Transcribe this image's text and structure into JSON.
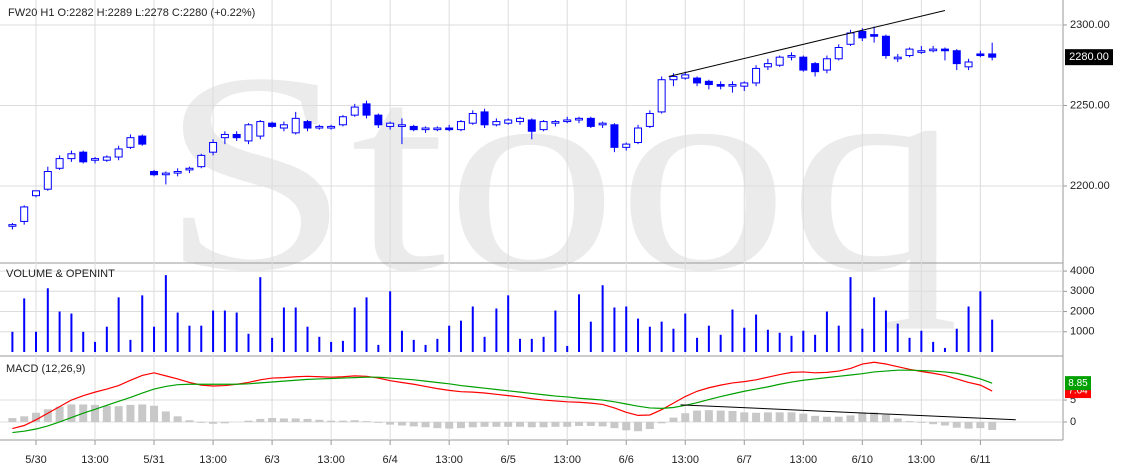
{
  "chart_data": [
    {
      "type": "candlestick",
      "title": "FW20  H1  O:2282 H:2289 L:2278 C:2280 (+0.22%)",
      "watermark": "Stooq",
      "color": "#0000ff",
      "grid": true,
      "xlim": [
        -1.05,
        89
      ],
      "categories": [
        null,
        null,
        "5/30",
        null,
        null,
        null,
        null,
        "13:00",
        null,
        null,
        null,
        null,
        "5/31",
        null,
        null,
        null,
        null,
        "13:00",
        null,
        null,
        null,
        null,
        "6/3",
        null,
        null,
        null,
        null,
        "13:00",
        null,
        null,
        null,
        null,
        "6/4",
        null,
        null,
        null,
        null,
        "13:00",
        null,
        null,
        null,
        null,
        "6/5",
        null,
        null,
        null,
        null,
        "13:00",
        null,
        null,
        null,
        null,
        "6/6",
        null,
        null,
        null,
        null,
        "13:00",
        null,
        null,
        null,
        null,
        "6/7",
        null,
        null,
        null,
        null,
        "13:00",
        null,
        null,
        null,
        null,
        "6/10",
        null,
        null,
        null,
        null,
        "13:00",
        null,
        null,
        null,
        null,
        "6/11",
        null
      ],
      "open": [
        2175,
        2178,
        2194,
        2198,
        2211,
        2217,
        2221,
        2216,
        2216,
        2218,
        2224,
        2231,
        2209,
        2207,
        2208,
        2210,
        2212,
        2221,
        2230,
        2232,
        2228,
        2231,
        2239,
        2236,
        2233,
        2240,
        2236,
        2236,
        2238,
        2244,
        2251,
        2244,
        2237,
        2237,
        2237,
        2235,
        2235,
        2236,
        2235,
        2239,
        2246,
        2238,
        2239,
        2240,
        2241,
        2235,
        2239,
        2240,
        2241,
        2242,
        2238,
        2238,
        2224,
        2227,
        2237,
        2246,
        2266,
        2267,
        2267,
        2265,
        2263,
        2262,
        2262,
        2264,
        2274,
        2275,
        2280,
        2280,
        2276,
        2272,
        2279,
        2288,
        2296,
        2294,
        2293,
        2279,
        2281,
        2283,
        2284,
        2285,
        2284,
        2274,
        2282,
        2282
      ],
      "high": [
        2177,
        2188,
        2197,
        2212,
        2219,
        2222,
        2222,
        2218,
        2219,
        2225,
        2232,
        2232,
        2210,
        2209,
        2211,
        2212,
        2220,
        2229,
        2234,
        2234,
        2239,
        2241,
        2240,
        2240,
        2246,
        2241,
        2238,
        2238,
        2244,
        2251,
        2253,
        2245,
        2240,
        2242,
        2238,
        2237,
        2237,
        2238,
        2241,
        2247,
        2248,
        2242,
        2242,
        2243,
        2242,
        2241,
        2241,
        2243,
        2243,
        2243,
        2240,
        2239,
        2227,
        2238,
        2247,
        2268,
        2270,
        2271,
        2268,
        2266,
        2265,
        2265,
        2265,
        2275,
        2279,
        2281,
        2283,
        2281,
        2277,
        2281,
        2288,
        2297,
        2298,
        2299,
        2294,
        2282,
        2286,
        2287,
        2287,
        2286,
        2285,
        2279,
        2284,
        2289
      ],
      "low": [
        2173,
        2176,
        2193,
        2197,
        2210,
        2215,
        2214,
        2214,
        2215,
        2216,
        2223,
        2225,
        2206,
        2201,
        2206,
        2208,
        2211,
        2219,
        2226,
        2228,
        2226,
        2229,
        2236,
        2234,
        2232,
        2234,
        2235,
        2235,
        2237,
        2243,
        2242,
        2236,
        2235,
        2226,
        2234,
        2233,
        2234,
        2234,
        2234,
        2238,
        2236,
        2237,
        2238,
        2238,
        2229,
        2234,
        2237,
        2239,
        2239,
        2236,
        2236,
        2221,
        2222,
        2226,
        2236,
        2245,
        2262,
        2266,
        2262,
        2260,
        2260,
        2258,
        2259,
        2262,
        2272,
        2274,
        2278,
        2271,
        2268,
        2270,
        2278,
        2287,
        2290,
        2289,
        2279,
        2277,
        2280,
        2282,
        2283,
        2278,
        2272,
        2272,
        2280,
        2278
      ],
      "close": [
        2176,
        2187,
        2197,
        2209,
        2217,
        2220,
        2215,
        2217,
        2218,
        2223,
        2230,
        2226,
        2207,
        2208,
        2209,
        2211,
        2219,
        2227,
        2232,
        2230,
        2238,
        2240,
        2237,
        2238,
        2242,
        2236,
        2237,
        2237,
        2243,
        2249,
        2244,
        2238,
        2239,
        2238,
        2235,
        2236,
        2236,
        2235,
        2240,
        2245,
        2238,
        2240,
        2241,
        2242,
        2234,
        2240,
        2240,
        2241,
        2242,
        2237,
        2239,
        2224,
        2226,
        2236,
        2245,
        2266,
        2268,
        2269,
        2264,
        2263,
        2262,
        2263,
        2264,
        2273,
        2276,
        2280,
        2281,
        2272,
        2271,
        2279,
        2286,
        2295,
        2292,
        2293,
        2281,
        2280,
        2285,
        2284,
        2285,
        2284,
        2276,
        2277,
        2281,
        2280
      ],
      "ylim": [
        2152.8,
        2315.5
      ],
      "yticks": [
        {
          "value": 2200,
          "label": "2200.00"
        },
        {
          "value": 2250,
          "label": "2250.00"
        },
        {
          "value": 2300,
          "label": "2300.00"
        }
      ],
      "last_price": {
        "value": 2280,
        "label": "2280.00"
      },
      "trendline": {
        "x": [
          55.6,
          79
        ],
        "y": [
          2268,
          2309
        ]
      }
    },
    {
      "type": "bar",
      "title": "VOLUME & OPENINT",
      "color": "#0000ff",
      "grid": true,
      "values": [
        1000,
        2650,
        1000,
        3150,
        2000,
        1900,
        1000,
        500,
        1250,
        2700,
        600,
        2800,
        1250,
        3800,
        1950,
        1300,
        1300,
        2050,
        2050,
        1950,
        900,
        3700,
        700,
        2200,
        2200,
        1250,
        750,
        500,
        550,
        2200,
        2700,
        350,
        3000,
        1050,
        600,
        350,
        650,
        1300,
        1550,
        2250,
        750,
        2150,
        2800,
        650,
        650,
        750,
        2050,
        300,
        2850,
        1500,
        3300,
        2200,
        2250,
        1650,
        1250,
        1500,
        1150,
        1900,
        700,
        1300,
        850,
        2100,
        1200,
        1850,
        1100,
        950,
        800,
        1050,
        850,
        2000,
        1300,
        3700,
        1150,
        2700,
        2050,
        1400,
        700,
        1050,
        500,
        200,
        1150,
        2250,
        3000,
        1600
      ],
      "ylim": [
        0,
        4350
      ],
      "yticks": [
        1000,
        2000,
        3000,
        4000
      ]
    },
    {
      "type": "macd",
      "title": "MACD (12,26,9)",
      "grid": true,
      "series": [
        {
          "color": "#ff0000",
          "values": [
            -1.5,
            -0.8,
            0.5,
            2.0,
            3.5,
            5.0,
            6.0,
            6.8,
            7.5,
            8.3,
            9.5,
            10.6,
            11.2,
            10.5,
            9.8,
            9.0,
            8.4,
            8.2,
            8.3,
            8.6,
            9.0,
            9.6,
            10.0,
            10.1,
            10.3,
            10.4,
            10.3,
            10.2,
            10.3,
            10.5,
            10.4,
            10.0,
            9.4,
            9.0,
            8.6,
            8.1,
            7.6,
            7.2,
            6.9,
            6.8,
            6.6,
            6.3,
            6.0,
            5.7,
            5.3,
            5.0,
            4.8,
            4.6,
            4.5,
            4.3,
            4.0,
            3.2,
            2.2,
            1.5,
            1.6,
            2.8,
            4.3,
            5.8,
            7.0,
            7.8,
            8.4,
            8.9,
            9.2,
            9.6,
            10.2,
            10.8,
            11.3,
            11.4,
            11.2,
            11.3,
            11.6,
            12.2,
            13.2,
            13.6,
            13.2,
            12.6,
            12.0,
            11.5,
            11.1,
            10.6,
            9.8,
            9.0,
            8.4,
            7.04
          ]
        },
        {
          "color": "#00a000",
          "values": [
            -2.4,
            -2.1,
            -1.6,
            -0.9,
            0.0,
            1.0,
            2.0,
            2.9,
            3.8,
            4.7,
            5.6,
            6.6,
            7.5,
            8.1,
            8.5,
            8.6,
            8.6,
            8.6,
            8.6,
            8.6,
            8.7,
            8.9,
            9.1,
            9.3,
            9.5,
            9.7,
            9.8,
            9.9,
            10.0,
            10.1,
            10.2,
            10.2,
            10.0,
            9.8,
            9.6,
            9.3,
            9.0,
            8.7,
            8.3,
            8.0,
            7.7,
            7.4,
            7.1,
            6.8,
            6.5,
            6.2,
            5.9,
            5.7,
            5.4,
            5.2,
            5.0,
            4.6,
            4.1,
            3.6,
            3.2,
            3.1,
            3.3,
            3.8,
            4.4,
            5.1,
            5.8,
            6.4,
            7.0,
            7.5,
            8.0,
            8.6,
            9.1,
            9.5,
            9.8,
            10.1,
            10.4,
            10.7,
            11.0,
            11.4,
            11.6,
            11.8,
            11.8,
            11.7,
            11.6,
            11.4,
            11.1,
            10.5,
            9.8,
            8.85
          ]
        }
      ],
      "histogram": {
        "color": "#c8c8c8",
        "values": [
          0.9,
          1.3,
          2.1,
          2.9,
          3.5,
          4.0,
          4.0,
          3.9,
          3.7,
          3.6,
          3.9,
          4.0,
          3.7,
          2.4,
          1.3,
          0.4,
          -0.2,
          -0.4,
          -0.3,
          0.0,
          0.3,
          0.7,
          0.9,
          0.8,
          0.8,
          0.7,
          0.5,
          0.3,
          0.3,
          0.4,
          0.2,
          -0.2,
          -0.6,
          -0.8,
          -1.0,
          -1.2,
          -1.4,
          -1.5,
          -1.4,
          -1.2,
          -1.1,
          -1.1,
          -1.1,
          -1.1,
          -1.2,
          -1.2,
          -1.1,
          -1.1,
          -0.9,
          -0.9,
          -1.0,
          -1.4,
          -1.9,
          -2.1,
          -1.6,
          -0.3,
          1.0,
          2.0,
          2.6,
          2.7,
          2.6,
          2.5,
          2.2,
          2.1,
          2.2,
          2.2,
          2.2,
          1.9,
          1.4,
          1.2,
          1.2,
          1.5,
          2.2,
          2.2,
          1.6,
          0.8,
          0.2,
          -0.2,
          -0.5,
          -0.8,
          -1.3,
          -1.5,
          -1.4,
          -1.81
        ]
      },
      "ylim": [
        -4.1,
        14.8
      ],
      "yticks": [
        0,
        5
      ],
      "trendline": {
        "x": [
          56.6,
          85
        ],
        "y": [
          3.9,
          0.5
        ]
      }
    }
  ]
}
